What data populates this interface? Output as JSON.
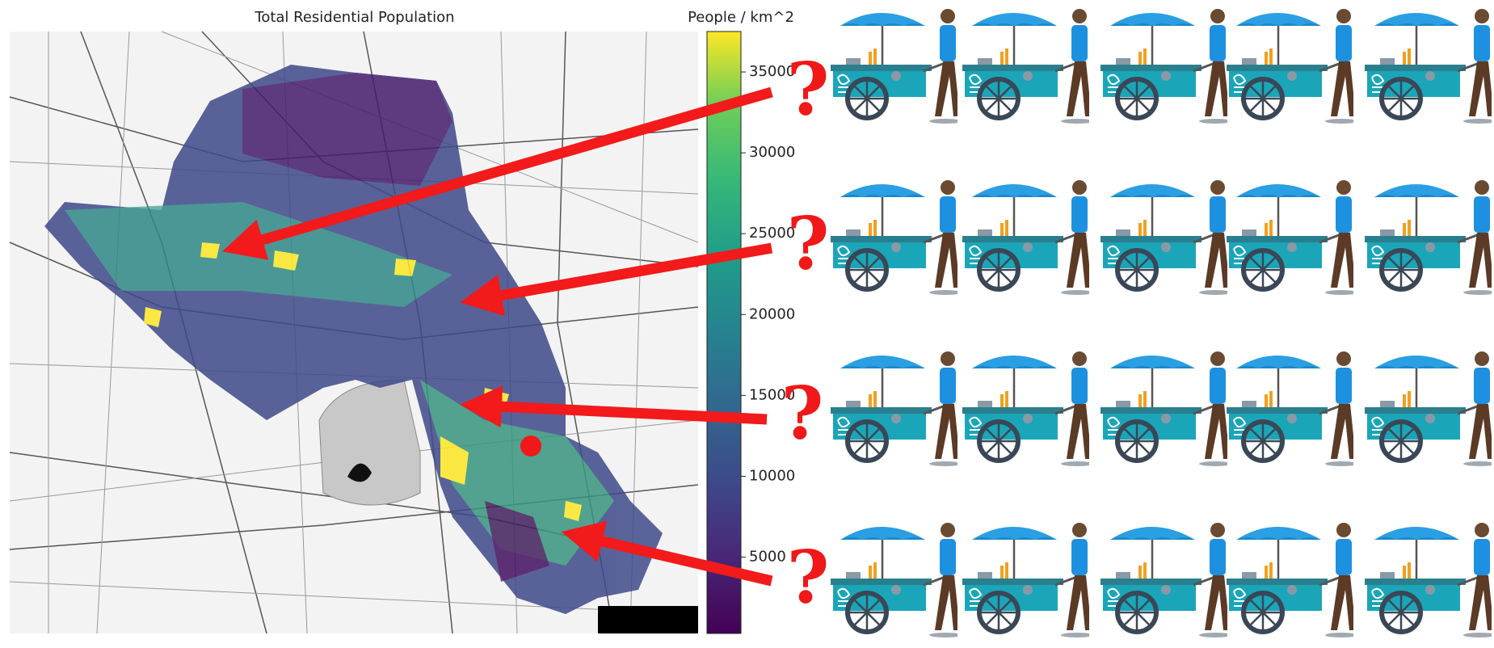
{
  "map": {
    "title": "Total Residential Population",
    "colorbar": {
      "label": "People / km^2",
      "range": [
        280,
        37500
      ],
      "ticks": [
        5000,
        10000,
        15000,
        20000,
        25000,
        30000,
        35000
      ]
    }
  },
  "annotations": {
    "question_marks": [
      "?",
      "?",
      "?",
      "?"
    ]
  }
}
